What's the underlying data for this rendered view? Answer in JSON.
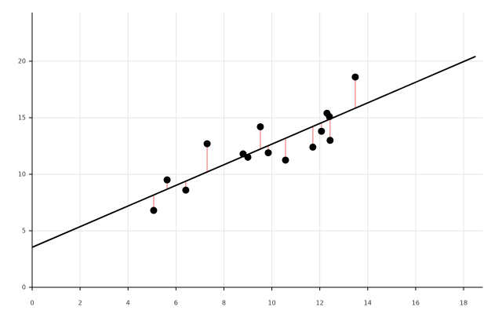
{
  "chart_data": {
    "type": "scatter",
    "x": [
      5.07,
      5.63,
      6.41,
      7.3,
      8.8,
      9.0,
      9.52,
      9.85,
      10.57,
      11.71,
      12.07,
      12.3,
      12.4,
      12.43,
      13.48
    ],
    "values": [
      6.8,
      9.5,
      8.6,
      12.7,
      11.8,
      11.5,
      14.2,
      11.9,
      11.25,
      12.4,
      13.8,
      15.4,
      15.1,
      13.0,
      18.6
    ],
    "color": "#000000",
    "fit_line": {
      "x": [
        0,
        18.5
      ],
      "y": [
        3.54,
        20.42
      ],
      "color": "#000000"
    },
    "residual_color": "#f08080",
    "xlim": [
      0,
      18.8
    ],
    "ylim": [
      0,
      24.3
    ],
    "xticks": [
      0,
      2,
      4,
      6,
      8,
      10,
      12,
      14,
      16,
      18
    ],
    "yticks": [
      0,
      5,
      10,
      15,
      20
    ],
    "grid": true
  }
}
